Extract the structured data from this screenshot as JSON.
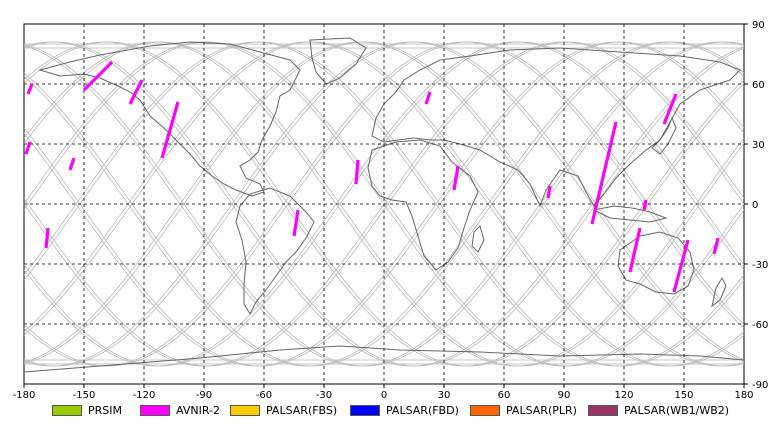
{
  "map": {
    "x_ticks": [
      "-180",
      "-150",
      "-120",
      "-90",
      "-60",
      "-30",
      "0",
      "30",
      "60",
      "90",
      "120",
      "150",
      "180"
    ],
    "y_ticks": [
      "90",
      "60",
      "30",
      "0",
      "-30",
      "-60",
      "-90"
    ],
    "x_range": [
      -180,
      180
    ],
    "y_range": [
      -90,
      90
    ],
    "orbit_color": "#b8b8b8",
    "coast_color": "#666666",
    "grid_style": "dashed black",
    "swaths": [
      {
        "sensor": "AVNIR-2",
        "lat": [
          55,
          60
        ],
        "lon": [
          -178,
          -176
        ]
      },
      {
        "sensor": "AVNIR-2",
        "lat": [
          25,
          31
        ],
        "lon": [
          -179,
          -177
        ]
      },
      {
        "sensor": "AVNIR-2",
        "lat": [
          17,
          23
        ],
        "lon": [
          -157,
          -155
        ]
      },
      {
        "sensor": "AVNIR-2",
        "lat": [
          -22,
          -12
        ],
        "lon": [
          -169,
          -168
        ]
      },
      {
        "sensor": "AVNIR-2",
        "lat": [
          57,
          71
        ],
        "lon": [
          -150,
          -136
        ]
      },
      {
        "sensor": "AVNIR-2",
        "lat": [
          50,
          62
        ],
        "lon": [
          -127,
          -121
        ]
      },
      {
        "sensor": "AVNIR-2",
        "lat": [
          23,
          51
        ],
        "lon": [
          -111,
          -103
        ]
      },
      {
        "sensor": "AVNIR-2",
        "lat": [
          -16,
          -3
        ],
        "lon": [
          -45,
          -43
        ]
      },
      {
        "sensor": "AVNIR-2",
        "lat": [
          10,
          22
        ],
        "lon": [
          -14,
          -13
        ]
      },
      {
        "sensor": "AVNIR-2",
        "lat": [
          7,
          19
        ],
        "lon": [
          35,
          37
        ]
      },
      {
        "sensor": "AVNIR-2",
        "lat": [
          50,
          56
        ],
        "lon": [
          21,
          23
        ]
      },
      {
        "sensor": "AVNIR-2",
        "lat": [
          3,
          9
        ],
        "lon": [
          82,
          83
        ]
      },
      {
        "sensor": "AVNIR-2",
        "lat": [
          -10,
          41
        ],
        "lon": [
          104,
          116
        ]
      },
      {
        "sensor": "AVNIR-2",
        "lat": [
          -34,
          -12
        ],
        "lon": [
          123,
          128
        ]
      },
      {
        "sensor": "AVNIR-2",
        "lat": [
          -3,
          2
        ],
        "lon": [
          130,
          131
        ]
      },
      {
        "sensor": "AVNIR-2",
        "lat": [
          -44,
          -18
        ],
        "lon": [
          145,
          152
        ]
      },
      {
        "sensor": "AVNIR-2",
        "lat": [
          40,
          55
        ],
        "lon": [
          140,
          146
        ]
      },
      {
        "sensor": "AVNIR-2",
        "lat": [
          -25,
          -17
        ],
        "lon": [
          165,
          167
        ]
      }
    ]
  },
  "legend": [
    {
      "label": "PRSIM",
      "color": "#99cc00"
    },
    {
      "label": "AVNIR-2",
      "color": "#ff00ff"
    },
    {
      "label": "PALSAR(FBS)",
      "color": "#ffcc00"
    },
    {
      "label": "PALSAR(FBD)",
      "color": "#0000ff"
    },
    {
      "label": "PALSAR(PLR)",
      "color": "#ff6600"
    },
    {
      "label": "PALSAR(WB1/WB2)",
      "color": "#993366"
    }
  ]
}
